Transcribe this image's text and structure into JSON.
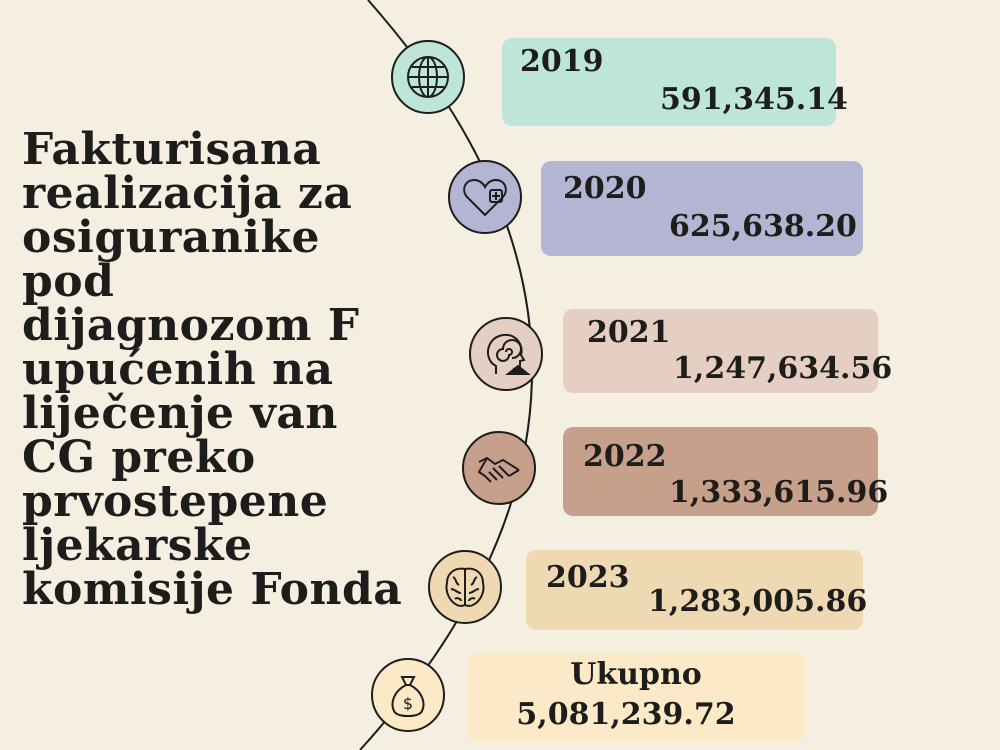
{
  "title_lines": [
    "Fakturisana",
    "realizacija za",
    "osiguranike",
    "pod",
    "dijagnozom F",
    "upućenih na",
    "liječenje van",
    "CG preko",
    "prvostepene",
    "ljekarske",
    "komisije Fonda"
  ],
  "entries": [
    {
      "label": "2019",
      "amount": "591,345.14",
      "color": "#bde5da",
      "icon": "globe-icon",
      "icon_color": "#bde5da"
    },
    {
      "label": "2020",
      "amount": "625,638.20",
      "color": "#b4b4d3",
      "icon": "heart-plus-icon",
      "icon_color": "#b4b4d3"
    },
    {
      "label": "2021",
      "amount": "1,247,634.56",
      "color": "#e5cfc3",
      "icon": "head-spiral-icon",
      "icon_color": "#e5cfc3"
    },
    {
      "label": "2022",
      "amount": "1,333,615.96",
      "color": "#c6a08a",
      "icon": "handshake-icon",
      "icon_color": "#c6a08a"
    },
    {
      "label": "2023",
      "amount": "1,283,005.86",
      "color": "#eed9b3",
      "icon": "brain-icon",
      "icon_color": "#eed9b3"
    },
    {
      "label": "Ukupno",
      "amount": "5,081,239.72",
      "color": "#fbe9c8",
      "icon": "money-bag-icon",
      "icon_color": "#fbe9c8"
    }
  ]
}
